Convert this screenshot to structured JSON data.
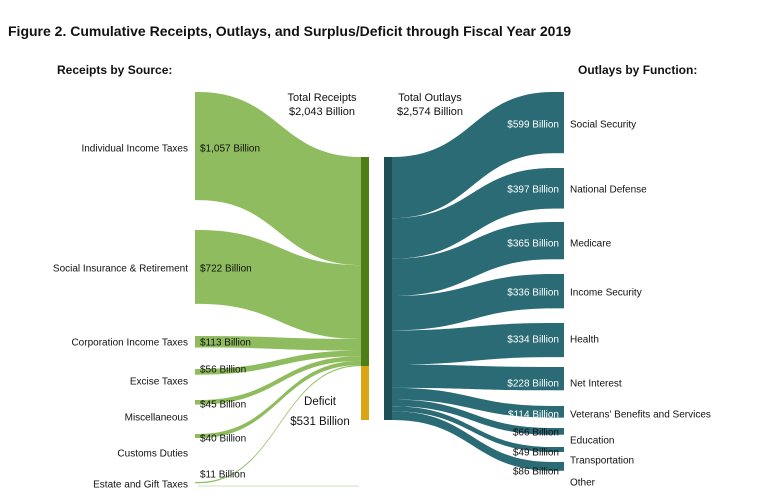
{
  "title": "Figure 2. Cumulative Receipts, Outlays, and Surplus/Deficit through Fiscal Year 2019",
  "colors": {
    "receipts": "#8fbc5e",
    "receipts_bar": "#4e7d16",
    "outlays": "#2a6b75",
    "outlays_bar": "#1e4f56",
    "deficit": "#d9a514"
  },
  "chart_data": {
    "type": "sankey",
    "unit": "Billion",
    "receipts_title": "Receipts by Source:",
    "outlays_title": "Outlays by Function:",
    "total_receipts": {
      "line1": "Total Receipts",
      "line2": "$2,043 Billion",
      "value": 2043
    },
    "total_outlays": {
      "line1": "Total Outlays",
      "line2": "$2,574 Billion",
      "value": 2574
    },
    "deficit": {
      "line1": "Deficit",
      "line2": "$531 Billion",
      "value": 531
    },
    "receipts": [
      {
        "name": "Individual Income Taxes",
        "value": 1057,
        "label": "$1,057 Billion"
      },
      {
        "name": "Social Insurance & Retirement",
        "value": 722,
        "label": "$722 Billion"
      },
      {
        "name": "Corporation Income Taxes",
        "value": 113,
        "label": "$113 Billion"
      },
      {
        "name": "Excise Taxes",
        "value": 56,
        "label": "$56 Billion"
      },
      {
        "name": "Miscellaneous",
        "value": 45,
        "label": "$45 Billion"
      },
      {
        "name": "Customs Duties",
        "value": 40,
        "label": "$40 Billion"
      },
      {
        "name": "Estate and Gift Taxes",
        "value": 11,
        "label": "$11 Billion"
      }
    ],
    "outlays": [
      {
        "name": "Social Security",
        "value": 599,
        "label": "$599 Billion"
      },
      {
        "name": "National Defense",
        "value": 397,
        "label": "$397 Billion"
      },
      {
        "name": "Medicare",
        "value": 365,
        "label": "$365 Billion"
      },
      {
        "name": "Income Security",
        "value": 336,
        "label": "$336 Billion"
      },
      {
        "name": "Health",
        "value": 334,
        "label": "$334 Billion"
      },
      {
        "name": "Net Interest",
        "value": 228,
        "label": "$228 Billion"
      },
      {
        "name": "Veterans' Benefits and Services",
        "value": 114,
        "label": "$114 Billion"
      },
      {
        "name": "Education",
        "value": 66,
        "label": "$66 Billion"
      },
      {
        "name": "Transportation",
        "value": 49,
        "label": "$49 Billion"
      },
      {
        "name": "Other",
        "value": 86,
        "label": "$86 Billion"
      }
    ]
  }
}
